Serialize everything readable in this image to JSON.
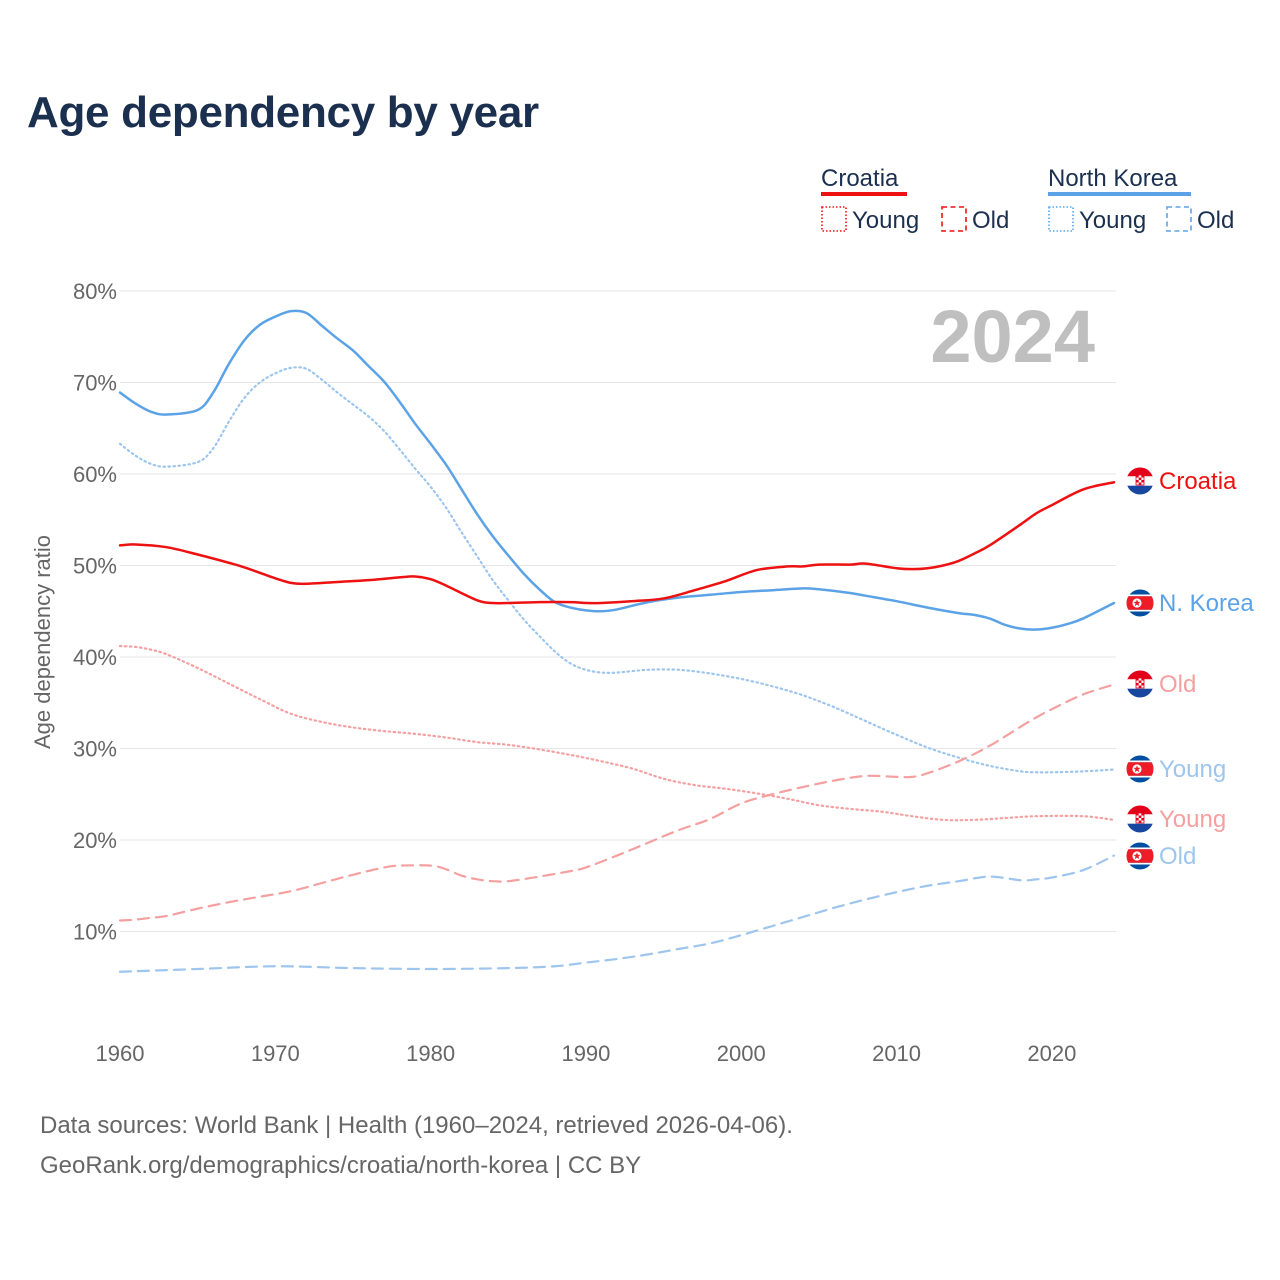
{
  "chart_data": {
    "type": "line",
    "title": "Age dependency by year",
    "ylabel": "Age dependency ratio",
    "xlabel": "",
    "xlim": [
      1960,
      2024
    ],
    "ylim": [
      0,
      80
    ],
    "x_ticks": [
      1960,
      1970,
      1980,
      1990,
      2000,
      2010,
      2020
    ],
    "y_ticks": [
      10,
      20,
      30,
      40,
      50,
      60,
      70,
      80
    ],
    "y_tick_labels": [
      "10%",
      "20%",
      "30%",
      "40%",
      "50%",
      "60%",
      "70%",
      "80%"
    ],
    "x_tick_labels": [
      "1960",
      "1970",
      "1980",
      "1990",
      "2000",
      "2010",
      "2020"
    ],
    "year_watermark": "2024",
    "legend": {
      "groups": [
        {
          "name": "Croatia",
          "color": "#ee1111",
          "items": [
            {
              "label": "Young",
              "style": "dotted"
            },
            {
              "label": "Old",
              "style": "dashed"
            }
          ]
        },
        {
          "name": "North Korea",
          "color": "#5ba3e6",
          "items": [
            {
              "label": "Young",
              "style": "dotted"
            },
            {
              "label": "Old",
              "style": "dashed"
            }
          ]
        }
      ]
    },
    "series": [
      {
        "name": "Croatia",
        "end_label": "Croatia",
        "color": "#ee1111",
        "dash": "solid",
        "flag": "croatia",
        "x": [
          1960,
          1961,
          1963,
          1965,
          1967,
          1968,
          1970,
          1971,
          1972,
          1974,
          1976,
          1978,
          1979,
          1980,
          1981,
          1983,
          1984,
          1985,
          1987,
          1989,
          1990,
          1991,
          1993,
          1995,
          1997,
          1999,
          2001,
          2003,
          2004,
          2005,
          2007,
          2008,
          2010,
          2011,
          2012,
          2013,
          2014,
          2015,
          2016,
          2018,
          2019,
          2020,
          2022,
          2024
        ],
        "values": [
          52.2,
          52.3,
          52.0,
          51.2,
          50.3,
          49.8,
          48.6,
          48.1,
          48.0,
          48.2,
          48.4,
          48.7,
          48.8,
          48.5,
          47.8,
          46.2,
          45.9,
          45.9,
          46.0,
          46.0,
          45.9,
          45.9,
          46.1,
          46.4,
          47.3,
          48.3,
          49.5,
          49.9,
          49.9,
          50.1,
          50.1,
          50.2,
          49.7,
          49.6,
          49.7,
          50.0,
          50.5,
          51.3,
          52.2,
          54.5,
          55.7,
          56.6,
          58.3,
          59.1
        ]
      },
      {
        "name": "North Korea",
        "end_label": "N. Korea",
        "color": "#5ba3e6",
        "dash": "solid",
        "flag": "nkorea",
        "x": [
          1960,
          1961,
          1962,
          1963,
          1965,
          1966,
          1967,
          1968,
          1969,
          1970,
          1971,
          1972,
          1973,
          1974,
          1975,
          1976,
          1977,
          1978,
          1979,
          1980,
          1981,
          1982,
          1983,
          1984,
          1985,
          1986,
          1987,
          1988,
          1989,
          1990,
          1991,
          1992,
          1994,
          1996,
          1998,
          2000,
          2002,
          2004,
          2005,
          2007,
          2008,
          2010,
          2012,
          2014,
          2015,
          2016,
          2017,
          2018,
          2019,
          2020,
          2021,
          2022,
          2024
        ],
        "values": [
          68.9,
          67.7,
          66.8,
          66.5,
          67.0,
          68.9,
          72.0,
          74.6,
          76.3,
          77.2,
          77.8,
          77.6,
          76.2,
          74.8,
          73.5,
          71.8,
          70.1,
          67.9,
          65.5,
          63.3,
          61.0,
          58.3,
          55.6,
          53.2,
          51.1,
          49.1,
          47.4,
          46.0,
          45.4,
          45.1,
          45.0,
          45.2,
          46.0,
          46.5,
          46.8,
          47.1,
          47.3,
          47.5,
          47.4,
          47.0,
          46.7,
          46.1,
          45.4,
          44.8,
          44.6,
          44.2,
          43.5,
          43.1,
          43.0,
          43.2,
          43.6,
          44.2,
          45.9
        ]
      },
      {
        "name": "Croatia Old",
        "end_label": "Old",
        "color": "#f5a0a0",
        "dash": "dashed",
        "flag": "croatia",
        "x": [
          1960,
          1961,
          1962,
          1963,
          1965,
          1967,
          1969,
          1971,
          1973,
          1975,
          1977,
          1978,
          1980,
          1981,
          1982,
          1983,
          1984,
          1985,
          1987,
          1989,
          1990,
          1992,
          1994,
          1996,
          1998,
          2000,
          2002,
          2004,
          2006,
          2008,
          2010,
          2011,
          2012,
          2014,
          2016,
          2018,
          2019,
          2020,
          2022,
          2024
        ],
        "values": [
          11.2,
          11.3,
          11.5,
          11.7,
          12.5,
          13.2,
          13.8,
          14.4,
          15.3,
          16.2,
          17.0,
          17.2,
          17.2,
          16.8,
          16.1,
          15.7,
          15.5,
          15.5,
          16.0,
          16.6,
          17.0,
          18.3,
          19.7,
          21.1,
          22.3,
          24.0,
          25.0,
          25.8,
          26.5,
          27.0,
          26.9,
          26.9,
          27.3,
          28.6,
          30.3,
          32.4,
          33.4,
          34.3,
          35.9,
          37.0
        ]
      },
      {
        "name": "North Korea Young",
        "end_label": "Young",
        "color": "#9ec5ee",
        "dash": "dotted",
        "flag": "nkorea",
        "x": [
          1960,
          1961,
          1962,
          1963,
          1965,
          1966,
          1967,
          1968,
          1969,
          1970,
          1971,
          1972,
          1973,
          1974,
          1975,
          1976,
          1977,
          1978,
          1979,
          1980,
          1981,
          1982,
          1983,
          1984,
          1985,
          1986,
          1987,
          1988,
          1989,
          1990,
          1991,
          1992,
          1994,
          1996,
          1998,
          2000,
          2002,
          2004,
          2006,
          2008,
          2010,
          2012,
          2014,
          2016,
          2018,
          2019,
          2020,
          2022,
          2024
        ],
        "values": [
          63.3,
          62.0,
          61.1,
          60.8,
          61.3,
          62.8,
          65.7,
          68.3,
          70.0,
          71.0,
          71.6,
          71.5,
          70.3,
          68.9,
          67.6,
          66.3,
          64.7,
          62.7,
          60.6,
          58.6,
          56.3,
          53.6,
          51.0,
          48.4,
          46.2,
          44.1,
          42.3,
          40.6,
          39.3,
          38.6,
          38.3,
          38.3,
          38.6,
          38.6,
          38.2,
          37.6,
          36.8,
          35.8,
          34.5,
          33.0,
          31.5,
          30.1,
          29.0,
          28.1,
          27.5,
          27.4,
          27.4,
          27.5,
          27.7
        ]
      },
      {
        "name": "Croatia Young",
        "end_label": "Young",
        "color": "#f5a0a0",
        "dash": "dotted",
        "flag": "croatia",
        "x": [
          1960,
          1961,
          1962,
          1963,
          1965,
          1967,
          1969,
          1971,
          1973,
          1975,
          1977,
          1979,
          1981,
          1983,
          1985,
          1987,
          1989,
          1991,
          1993,
          1995,
          1997,
          1999,
          2001,
          2003,
          2005,
          2007,
          2009,
          2011,
          2013,
          2015,
          2017,
          2019,
          2022,
          2024
        ],
        "values": [
          41.2,
          41.1,
          40.8,
          40.3,
          38.8,
          37.1,
          35.4,
          33.8,
          32.9,
          32.3,
          31.9,
          31.6,
          31.2,
          30.7,
          30.4,
          29.9,
          29.3,
          28.6,
          27.8,
          26.7,
          26.0,
          25.6,
          25.1,
          24.5,
          23.8,
          23.4,
          23.1,
          22.6,
          22.2,
          22.2,
          22.4,
          22.6,
          22.6,
          22.2
        ]
      },
      {
        "name": "North Korea Old",
        "end_label": "Old",
        "color": "#9ec5ee",
        "dash": "dashed",
        "flag": "nkorea",
        "x": [
          1960,
          1965,
          1970,
          1975,
          1980,
          1985,
          1988,
          1990,
          1992,
          1994,
          1996,
          1998,
          2000,
          2002,
          2004,
          2006,
          2008,
          2010,
          2012,
          2014,
          2016,
          2018,
          2019,
          2020,
          2022,
          2024
        ],
        "values": [
          5.6,
          5.9,
          6.2,
          6.0,
          5.9,
          6.0,
          6.2,
          6.6,
          7.0,
          7.5,
          8.1,
          8.7,
          9.6,
          10.6,
          11.6,
          12.6,
          13.5,
          14.3,
          15.0,
          15.5,
          16.0,
          15.6,
          15.7,
          15.9,
          16.7,
          18.3
        ]
      }
    ],
    "end_labels_order": [
      "Croatia",
      "N. Korea",
      "Old",
      "Young",
      "Young",
      "Old"
    ]
  },
  "source": {
    "line1": "Data sources: World Bank | Health (1960–2024, retrieved 2026-04-06).",
    "line2": "GeoRank.org/demographics/croatia/north-korea | CC BY"
  },
  "colors": {
    "title": "#1b2f4f",
    "axis_text": "#666666",
    "grid": "#e6e6e6",
    "watermark": "#bfbfbf",
    "croatia_strong": "#ee1111",
    "croatia_light": "#f5a0a0",
    "nkorea_strong": "#5ba3e6",
    "nkorea_light": "#9ec5ee"
  }
}
